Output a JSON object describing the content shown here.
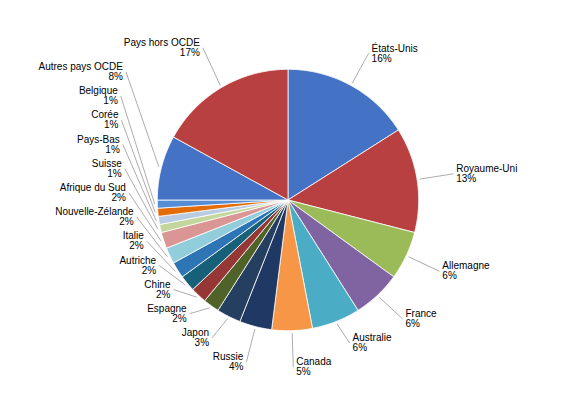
{
  "chart_data": {
    "type": "pie",
    "categories": [
      "États-Unis",
      "Royaume-Uni",
      "Allemagne",
      "France",
      "Australie",
      "Canada",
      "Russie",
      "Japon",
      "Espagne",
      "Chine",
      "Autriche",
      "Italie",
      "Nouvelle-Zélande",
      "Afrique du Sud",
      "Suisse",
      "Pays-Bas",
      "Corée",
      "Belgique",
      "Autres pays OCDE",
      "Pays hors OCDE"
    ],
    "values": [
      16,
      13,
      6,
      6,
      6,
      5,
      4,
      3,
      2,
      2,
      2,
      2,
      2,
      2,
      1,
      1,
      1,
      1,
      8,
      17
    ],
    "value_labels": [
      "16%",
      "13%",
      "6%",
      "6%",
      "6%",
      "5%",
      "4%",
      "3%",
      "2%",
      "2%",
      "2%",
      "2%",
      "2%",
      "2%",
      "1%",
      "1%",
      "1%",
      "1%",
      "8%",
      "17%"
    ],
    "colors": [
      "#4472C4",
      "#B94040",
      "#9BBB59",
      "#8064A2",
      "#4BACC6",
      "#F79646",
      "#1F3864",
      "#243F60",
      "#4F6228",
      "#953735",
      "#17607A",
      "#2E75B6",
      "#92CDDC",
      "#D99694",
      "#C3D69B",
      "#B8CCE4",
      "#E36C09",
      "#558ED5",
      "#4472C4",
      "#B94040"
    ]
  }
}
